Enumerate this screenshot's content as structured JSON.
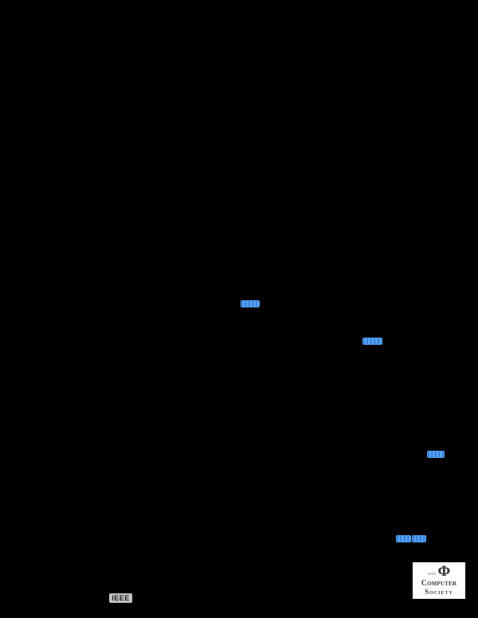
{
  "page": {
    "kind": "paper-page-render",
    "visible_text_note": "page body renders fully black; only link annotations and footer logos visible"
  },
  "colors": {
    "page-bg": "#000000",
    "link-highlight": "#59a7f8",
    "link-marks": "#2a6fd0",
    "ieee-box-bg": "#c9c9c9",
    "ieee-text": "#141414",
    "cs-box-bg": "#ffffff",
    "cs-text": "#2e2e2e"
  },
  "link_annotations": {
    "count": 5,
    "legible": false,
    "items": [
      {
        "id": "link-a",
        "text": ""
      },
      {
        "id": "link-b",
        "text": ""
      },
      {
        "id": "link-c",
        "text": ""
      },
      {
        "id": "link-d",
        "text": ""
      },
      {
        "id": "link-e",
        "text": ""
      }
    ]
  },
  "footer": {
    "ieee_logo_label": "IEEE",
    "computer_society_logo": {
      "ieee_small": "IEEE",
      "emblem_glyph": "Φ",
      "line1": "Computer",
      "line2": "Society"
    }
  }
}
